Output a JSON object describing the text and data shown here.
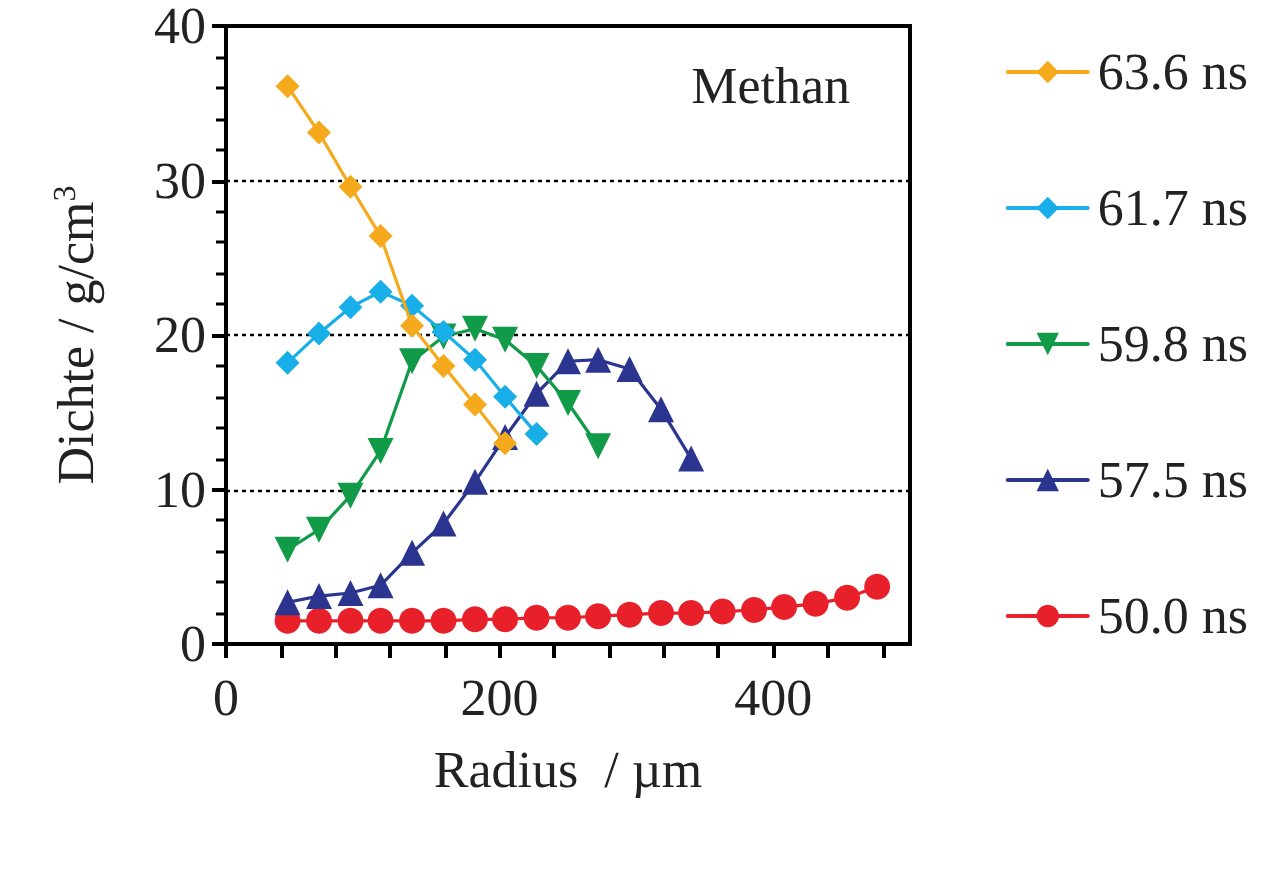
{
  "chart_data": {
    "type": "line",
    "xlabel": "Radius  / µm",
    "ylabel": "Dichte / g/cm$^{3}$",
    "annotations": [
      "Methan"
    ],
    "xlim": [
      0,
      500
    ],
    "xticks": [
      0,
      {
        "value": 40,
        "label": null
      },
      {
        "value": 80,
        "label": null
      },
      {
        "value": 120,
        "label": null
      },
      {
        "value": 160,
        "label": null
      },
      200,
      {
        "value": 240,
        "label": null
      },
      {
        "value": 280,
        "label": null
      },
      {
        "value": 320,
        "label": null
      },
      {
        "value": 360,
        "label": null
      },
      400,
      {
        "value": 440,
        "label": null
      },
      {
        "value": 480,
        "label": null
      }
    ],
    "ylim": [
      0,
      40
    ],
    "yticks": [
      0,
      10,
      20,
      30,
      40
    ],
    "grid": "y",
    "legend": "right",
    "line_style": "solid",
    "series": [
      {
        "name": "63.6 ns",
        "color": "#f5a91c",
        "marker": "diamond",
        "x": [
          45,
          68,
          91,
          113,
          136,
          159,
          182,
          204
        ],
        "values": [
          36.1,
          33.1,
          29.6,
          26.4,
          20.6,
          18.0,
          15.5,
          13.0
        ]
      },
      {
        "name": "61.7 ns",
        "color": "#18aee8",
        "marker": "diamond",
        "x": [
          45,
          68,
          91,
          113,
          136,
          159,
          182,
          204,
          227
        ],
        "values": [
          18.2,
          20.1,
          21.8,
          22.8,
          21.9,
          20.2,
          18.4,
          16.0,
          13.6
        ]
      },
      {
        "name": "59.8 ns",
        "color": "#119a48",
        "marker": "triangle-down",
        "x": [
          45,
          68,
          91,
          113,
          136,
          159,
          182,
          204,
          227,
          250,
          272
        ],
        "values": [
          6.1,
          7.4,
          9.6,
          12.5,
          18.3,
          19.9,
          20.4,
          19.7,
          18.0,
          15.6,
          12.8
        ]
      },
      {
        "name": "57.5 ns",
        "color": "#2b3590",
        "marker": "triangle",
        "x": [
          45,
          68,
          91,
          113,
          136,
          159,
          182,
          204,
          227,
          250,
          272,
          295,
          318,
          340
        ],
        "values": [
          2.7,
          3.1,
          3.3,
          3.8,
          5.9,
          7.8,
          10.5,
          13.4,
          16.2,
          18.3,
          18.4,
          17.8,
          15.2,
          12.0
        ]
      },
      {
        "name": "50.0 ns",
        "color": "#e8202a",
        "marker": "circle",
        "x": [
          45,
          68,
          91,
          113,
          136,
          159,
          182,
          204,
          227,
          250,
          272,
          295,
          318,
          340,
          363,
          386,
          408,
          431,
          454,
          476
        ],
        "values": [
          1.5,
          1.5,
          1.5,
          1.5,
          1.5,
          1.5,
          1.6,
          1.6,
          1.7,
          1.7,
          1.8,
          1.9,
          2.0,
          2.0,
          2.1,
          2.2,
          2.4,
          2.6,
          3.0,
          3.7
        ]
      }
    ]
  }
}
